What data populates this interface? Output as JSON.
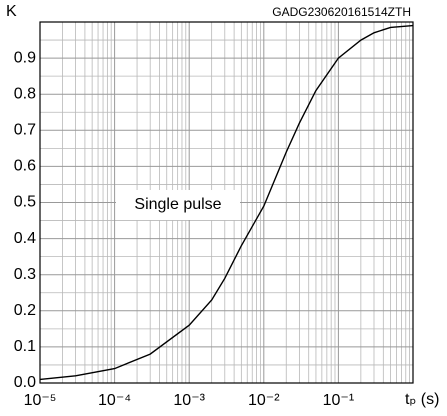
{
  "chart_data": {
    "type": "line",
    "y_label": "K",
    "x_label": "tₚ (s)",
    "code": "GADG230620161514ZTH",
    "annotation": "Single pulse",
    "log_x": true,
    "grid": true,
    "color": "#000000",
    "x": [
      1e-05,
      3e-05,
      0.0001,
      0.0003,
      0.001,
      0.002,
      0.003,
      0.005,
      0.01,
      0.02,
      0.03,
      0.05,
      0.1,
      0.2,
      0.3,
      0.5,
      1
    ],
    "values": [
      0.01,
      0.02,
      0.04,
      0.08,
      0.16,
      0.23,
      0.29,
      0.38,
      0.49,
      0.64,
      0.72,
      0.81,
      0.9,
      0.95,
      0.97,
      0.985,
      0.99
    ],
    "xlim": [
      1e-05,
      1
    ],
    "xticks": [
      {
        "value": 1e-05,
        "label": "10⁻⁵"
      },
      {
        "value": 0.0001,
        "label": "10⁻⁴"
      },
      {
        "value": 0.001,
        "label": "10⁻³"
      },
      {
        "value": 0.01,
        "label": "10⁻²"
      },
      {
        "value": 0.1,
        "label": "10⁻¹"
      }
    ],
    "ylim": [
      0,
      1
    ],
    "yticks": [
      {
        "value": 0,
        "label": "0.0"
      },
      0.1,
      0.2,
      0.3,
      0.4,
      0.5,
      0.6,
      0.7,
      0.8,
      0.9
    ]
  }
}
